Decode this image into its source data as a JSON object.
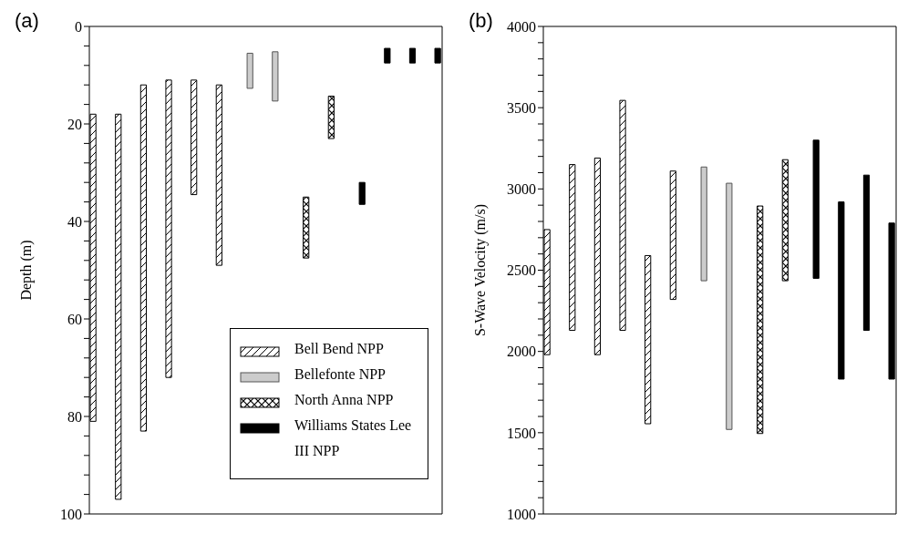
{
  "chart_data": [
    {
      "type": "bar",
      "title": "(a)",
      "ylabel": "Depth (m)",
      "categories": [
        null,
        null,
        null,
        null,
        null,
        null,
        null,
        null,
        null,
        null,
        null,
        null,
        null,
        null
      ],
      "ylim": [
        100,
        0
      ],
      "yticks": [
        0,
        {
          "value": 4,
          "label": null
        },
        {
          "value": 8,
          "label": null
        },
        {
          "value": 12,
          "label": null
        },
        {
          "value": 16,
          "label": null
        },
        20,
        {
          "value": 24,
          "label": null
        },
        {
          "value": 28,
          "label": null
        },
        {
          "value": 32,
          "label": null
        },
        {
          "value": 36,
          "label": null
        },
        40,
        {
          "value": 44,
          "label": null
        },
        {
          "value": 48,
          "label": null
        },
        {
          "value": 52,
          "label": null
        },
        {
          "value": 56,
          "label": null
        },
        60,
        {
          "value": 64,
          "label": null
        },
        {
          "value": 68,
          "label": null
        },
        {
          "value": 72,
          "label": null
        },
        {
          "value": 76,
          "label": null
        },
        80,
        {
          "value": 84,
          "label": null
        },
        {
          "value": 88,
          "label": null
        },
        {
          "value": 92,
          "label": null
        },
        {
          "value": 96,
          "label": null
        },
        100
      ],
      "legend": "bottom right",
      "series": [
        {
          "name": "Bell Bend NPP",
          "color": "#000000",
          "base": [
            18,
            18,
            12,
            11,
            11,
            12,
            null,
            null,
            null,
            null,
            null,
            null,
            null,
            null
          ],
          "values": [
            63,
            79,
            71,
            61,
            23.5,
            37,
            null,
            null,
            null,
            null,
            null,
            null,
            null,
            null
          ]
        },
        {
          "name": "Bellefonte NPP",
          "color": "#cccccc",
          "base": [
            null,
            null,
            null,
            null,
            null,
            null,
            5.5,
            5.2,
            null,
            null,
            null,
            null,
            null,
            null
          ],
          "values": [
            null,
            null,
            null,
            null,
            null,
            null,
            7.2,
            10.1,
            null,
            null,
            null,
            null,
            null,
            null
          ]
        },
        {
          "name": "North Anna NPP",
          "color": "#000000",
          "base": [
            null,
            null,
            null,
            null,
            null,
            null,
            null,
            null,
            35,
            14.3,
            null,
            null,
            null,
            null
          ],
          "values": [
            null,
            null,
            null,
            null,
            null,
            null,
            null,
            null,
            12.5,
            8.7,
            null,
            null,
            null,
            null
          ]
        },
        {
          "name": "Williams States Lee III NPP",
          "color": "#000000",
          "base": [
            null,
            null,
            null,
            null,
            null,
            null,
            null,
            null,
            null,
            null,
            32,
            4.5,
            4.5,
            4.5
          ],
          "values": [
            null,
            null,
            null,
            null,
            null,
            null,
            null,
            null,
            null,
            null,
            4.5,
            3,
            3,
            3
          ]
        }
      ]
    },
    {
      "type": "bar",
      "title": "(b)",
      "ylabel": "S-Wave Velocity  (m/s)",
      "categories": [
        null,
        null,
        null,
        null,
        null,
        null,
        null,
        null,
        null,
        null,
        null,
        null,
        null,
        null
      ],
      "ylim": [
        1000,
        4000
      ],
      "yticks": [
        1000,
        {
          "value": 1100,
          "label": null
        },
        {
          "value": 1200,
          "label": null
        },
        {
          "value": 1300,
          "label": null
        },
        {
          "value": 1400,
          "label": null
        },
        1500,
        {
          "value": 1600,
          "label": null
        },
        {
          "value": 1700,
          "label": null
        },
        {
          "value": 1800,
          "label": null
        },
        {
          "value": 1900,
          "label": null
        },
        2000,
        {
          "value": 2100,
          "label": null
        },
        {
          "value": 2200,
          "label": null
        },
        {
          "value": 2300,
          "label": null
        },
        {
          "value": 2400,
          "label": null
        },
        2500,
        {
          "value": 2600,
          "label": null
        },
        {
          "value": 2700,
          "label": null
        },
        {
          "value": 2800,
          "label": null
        },
        {
          "value": 2900,
          "label": null
        },
        3000,
        {
          "value": 3100,
          "label": null
        },
        {
          "value": 3200,
          "label": null
        },
        {
          "value": 3300,
          "label": null
        },
        {
          "value": 3400,
          "label": null
        },
        3500,
        {
          "value": 3600,
          "label": null
        },
        {
          "value": 3700,
          "label": null
        },
        {
          "value": 3800,
          "label": null
        },
        {
          "value": 3900,
          "label": null
        },
        4000
      ],
      "series": [
        {
          "color": "#000000",
          "base": [
            1980,
            2130,
            1980,
            2130,
            1555,
            2320,
            null,
            null,
            null,
            null,
            null,
            null,
            null,
            null
          ],
          "values": [
            770,
            1020,
            1210,
            1415,
            1035,
            790,
            null,
            null,
            null,
            null,
            null,
            null,
            null,
            null
          ]
        },
        {
          "color": "#cccccc",
          "base": [
            null,
            null,
            null,
            null,
            null,
            null,
            2435,
            1520,
            null,
            null,
            null,
            null,
            null,
            null
          ],
          "values": [
            null,
            null,
            null,
            null,
            null,
            null,
            700,
            1515,
            null,
            null,
            null,
            null,
            null,
            null
          ]
        },
        {
          "color": "#000000",
          "base": [
            null,
            null,
            null,
            null,
            null,
            null,
            null,
            null,
            1495,
            2435,
            null,
            null,
            null,
            null
          ],
          "values": [
            null,
            null,
            null,
            null,
            null,
            null,
            null,
            null,
            1400,
            745,
            null,
            null,
            null,
            null
          ]
        },
        {
          "color": "#000000",
          "base": [
            null,
            null,
            null,
            null,
            null,
            null,
            null,
            null,
            null,
            null,
            2450,
            1830,
            2130,
            1830
          ],
          "values": [
            null,
            null,
            null,
            null,
            null,
            null,
            null,
            null,
            null,
            null,
            850,
            1090,
            955,
            960
          ]
        }
      ]
    }
  ]
}
